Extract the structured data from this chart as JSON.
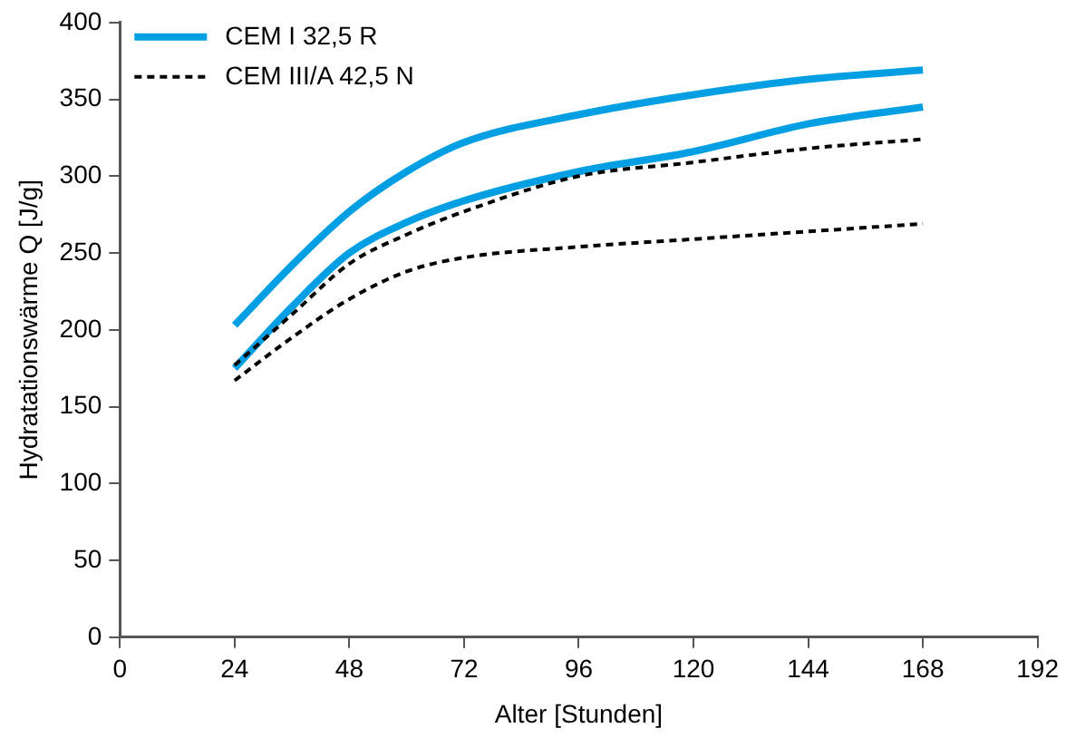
{
  "chart_data": {
    "type": "line",
    "xlabel": "Alter [Stunden]",
    "ylabel": "Hydratationswärme Q [J/g]",
    "x": [
      24,
      36,
      48,
      60,
      72,
      96,
      120,
      144,
      168
    ],
    "xlim": [
      0,
      192
    ],
    "xticks": [
      0,
      24,
      48,
      72,
      96,
      120,
      144,
      168,
      192
    ],
    "ylim": [
      0,
      400
    ],
    "yticks": [
      0,
      50,
      100,
      150,
      200,
      250,
      300,
      350,
      400
    ],
    "grid": false,
    "legend": "top left",
    "marker": "none",
    "series": [
      {
        "name": "CEM I 32,5 R",
        "color": "#009fe3",
        "line_style": "solid",
        "values": [
          203,
          242,
          277,
          303,
          322,
          340,
          353,
          363,
          369
        ]
      },
      {
        "color": "#009fe3",
        "line_style": "solid",
        "values": [
          175,
          215,
          250,
          270,
          284,
          303,
          316,
          334,
          345
        ]
      },
      {
        "name": "CEM III/A 42,5 N",
        "color": "#000000",
        "line_style": "dashed",
        "values": [
          177,
          210,
          243,
          262,
          277,
          300,
          309,
          318,
          324
        ]
      },
      {
        "color": "#000000",
        "line_style": "dashed",
        "values": [
          167,
          195,
          220,
          238,
          247,
          254,
          259,
          264,
          269
        ]
      }
    ]
  }
}
